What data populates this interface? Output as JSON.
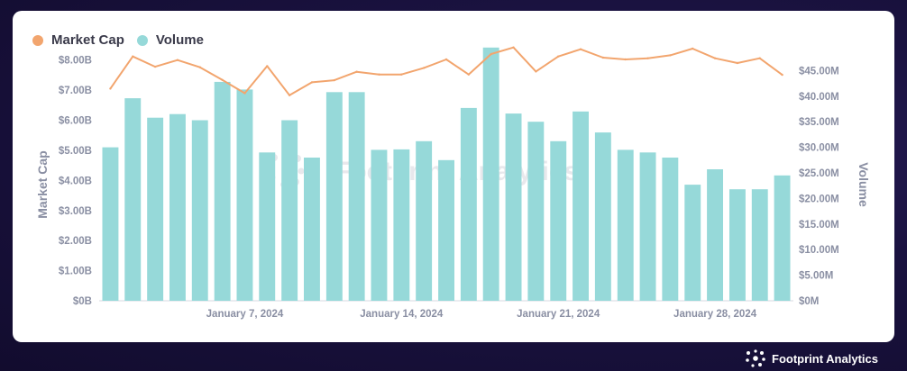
{
  "legend": {
    "market_cap_label": "Market Cap",
    "volume_label": "Volume"
  },
  "watermark": "Footprint Analytics",
  "brand": "Footprint Analytics",
  "colors": {
    "market_cap": "#f2a56e",
    "volume": "#96d9d9",
    "axis_text": "#8a8fa3"
  },
  "chart_data": {
    "type": "bar",
    "title": "",
    "ylabel": "Market Cap",
    "y2label": "Volume",
    "ylim": [
      0,
      8.5
    ],
    "y2lim": [
      0,
      50
    ],
    "yticks": [
      "$0B",
      "$1.00B",
      "$2.00B",
      "$3.00B",
      "$4.00B",
      "$5.00B",
      "$6.00B",
      "$7.00B",
      "$8.00B"
    ],
    "y2ticks": [
      "$0M",
      "$5.00M",
      "$10.00M",
      "$15.00M",
      "$20.00M",
      "$25.00M",
      "$30.00M",
      "$35.00M",
      "$40.00M",
      "$45.00M"
    ],
    "xtick_labels": [
      {
        "label": "January 7, 2024",
        "index": 6.5
      },
      {
        "label": "January 14, 2024",
        "index": 13.5
      },
      {
        "label": "January 21, 2024",
        "index": 20.5
      },
      {
        "label": "January 28, 2024",
        "index": 27.5
      }
    ],
    "categories": [
      "2024-01-01",
      "2024-01-02",
      "2024-01-03",
      "2024-01-04",
      "2024-01-05",
      "2024-01-06",
      "2024-01-07",
      "2024-01-08",
      "2024-01-09",
      "2024-01-10",
      "2024-01-11",
      "2024-01-12",
      "2024-01-13",
      "2024-01-14",
      "2024-01-15",
      "2024-01-16",
      "2024-01-17",
      "2024-01-18",
      "2024-01-19",
      "2024-01-20",
      "2024-01-21",
      "2024-01-22",
      "2024-01-23",
      "2024-01-24",
      "2024-01-25",
      "2024-01-26",
      "2024-01-27",
      "2024-01-28",
      "2024-01-29",
      "2024-01-30",
      "2024-01-31"
    ],
    "series": [
      {
        "name": "Volume",
        "type": "bar",
        "axis": "right",
        "values": [
          30.0,
          39.6,
          35.8,
          36.5,
          35.3,
          42.8,
          41.3,
          29.0,
          35.3,
          28.0,
          40.8,
          40.8,
          29.5,
          29.6,
          31.2,
          27.5,
          37.7,
          49.5,
          36.6,
          35.0,
          31.2,
          37.0,
          32.9,
          29.5,
          29.0,
          28.0,
          22.7,
          25.7,
          21.8,
          21.8,
          24.5
        ]
      },
      {
        "name": "Market Cap",
        "type": "line",
        "axis": "left",
        "values": [
          7.05,
          8.12,
          7.78,
          8.0,
          7.76,
          7.34,
          6.9,
          7.8,
          6.83,
          7.26,
          7.33,
          7.61,
          7.52,
          7.52,
          7.74,
          8.02,
          7.52,
          8.2,
          8.42,
          7.62,
          8.12,
          8.36,
          8.08,
          8.02,
          8.06,
          8.16,
          8.38,
          8.06,
          7.9,
          8.06,
          7.51
        ]
      }
    ]
  }
}
